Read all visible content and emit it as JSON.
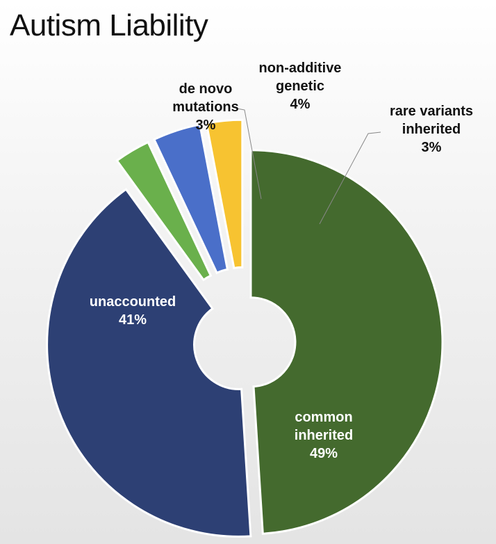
{
  "chart_data": {
    "type": "pie",
    "title": "Autism Liability",
    "slices": [
      {
        "name": "common inherited",
        "value": 49,
        "label": [
          "common",
          "inherited",
          "49%"
        ],
        "color": "#446a2e",
        "label_placement": "inside"
      },
      {
        "name": "unaccounted",
        "value": 41,
        "label": [
          "unaccounted",
          "41%"
        ],
        "color": "#2d4074",
        "label_placement": "inside"
      },
      {
        "name": "de novo mutations",
        "value": 3,
        "label": [
          "de novo",
          "mutations",
          "3%"
        ],
        "color": "#6ab04c",
        "label_placement": "outside"
      },
      {
        "name": "non-additive genetic",
        "value": 4,
        "label": [
          "non-additive",
          "genetic",
          "4%"
        ],
        "color": "#4a6fc9",
        "label_placement": "outside"
      },
      {
        "name": "rare variants inherited",
        "value": 3,
        "label": [
          "rare variants",
          "inherited",
          "3%"
        ],
        "color": "#f7c331",
        "label_placement": "outside"
      }
    ],
    "label_text_color_inside": "#ffffff",
    "label_text_color_outside": "#111111",
    "legend": "none"
  }
}
